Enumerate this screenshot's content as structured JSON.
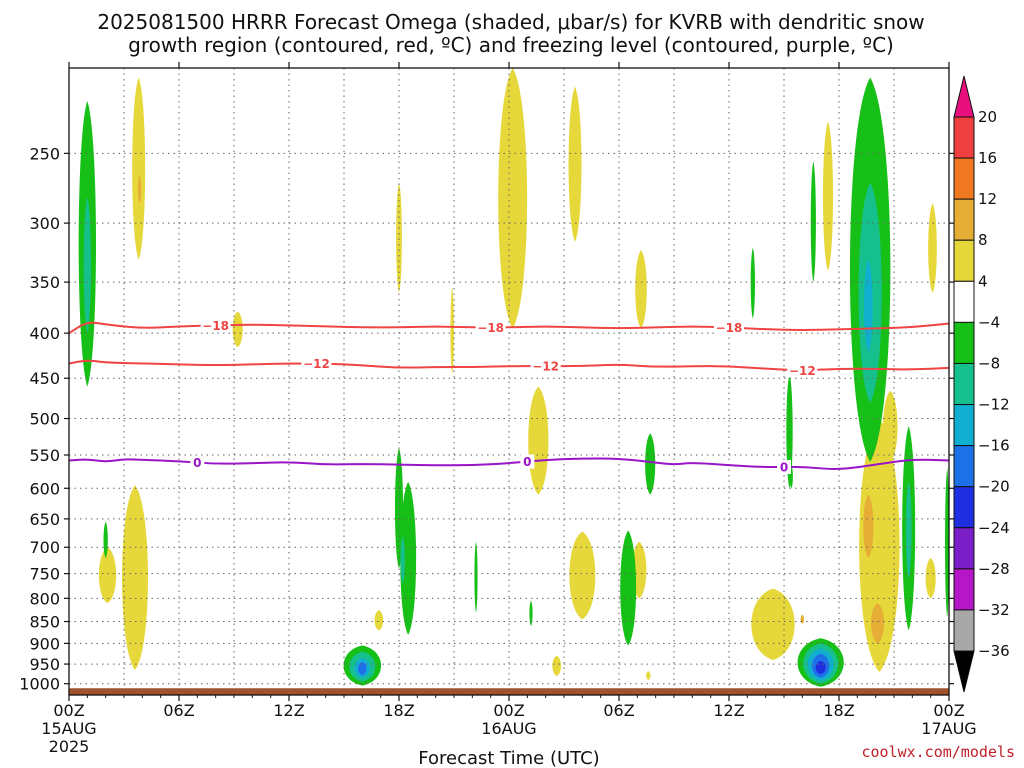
{
  "chart_data": {
    "type": "heatmap",
    "title_lines": [
      "2025081500 HRRR Forecast Omega (shaded, μbar/s) for KVRB with dendritic snow",
      "growth region (contoured, red, ºC) and freezing level (contoured, purple, ºC)"
    ],
    "xlabel": "Forecast Time (UTC)",
    "credit": "coolwx.com/models",
    "x_ticks": [
      {
        "h": 0,
        "lines": [
          "00Z",
          "15AUG",
          "2025"
        ]
      },
      {
        "h": 6,
        "lines": [
          "06Z"
        ]
      },
      {
        "h": 12,
        "lines": [
          "12Z"
        ]
      },
      {
        "h": 18,
        "lines": [
          "18Z"
        ]
      },
      {
        "h": 24,
        "lines": [
          "00Z",
          "16AUG"
        ]
      },
      {
        "h": 30,
        "lines": [
          "06Z"
        ]
      },
      {
        "h": 36,
        "lines": [
          "12Z"
        ]
      },
      {
        "h": 42,
        "lines": [
          "18Z"
        ]
      },
      {
        "h": 48,
        "lines": [
          "00Z",
          "17AUG"
        ]
      }
    ],
    "xlim_hours": [
      0,
      48
    ],
    "y_ticks": [
      250,
      300,
      350,
      400,
      450,
      500,
      550,
      600,
      650,
      700,
      750,
      800,
      850,
      900,
      950,
      1000
    ],
    "ylim_hpa": [
      200,
      1030
    ],
    "y_scale": "log",
    "ground_hpa": 1012,
    "grid": true,
    "colorbar": {
      "labels": [
        "20",
        "16",
        "12",
        "8",
        "4",
        "−4",
        "−8",
        "−12",
        "−16",
        "−20",
        "−24",
        "−28",
        "−32",
        "−36"
      ],
      "colors": [
        "#e8107c",
        "#ee4040",
        "#f07820",
        "#e6ae36",
        "#e6d83a",
        "#ffffff",
        "#16c016",
        "#16c08c",
        "#12aed0",
        "#1e70e8",
        "#1e2ee0",
        "#7a1ec8",
        "#b416c8",
        "#a8a8a8",
        "#000000"
      ]
    },
    "contours": [
      {
        "name": "-18",
        "color": "#ee4444",
        "label": "−18",
        "label_hours": [
          8,
          23,
          36
        ],
        "points": [
          [
            0,
            400
          ],
          [
            1,
            388
          ],
          [
            2,
            391
          ],
          [
            4,
            395
          ],
          [
            6,
            393
          ],
          [
            8,
            392
          ],
          [
            10,
            391
          ],
          [
            12,
            392
          ],
          [
            14,
            393
          ],
          [
            16,
            394
          ],
          [
            18,
            394
          ],
          [
            20,
            393
          ],
          [
            22,
            394
          ],
          [
            24,
            394
          ],
          [
            26,
            393
          ],
          [
            28,
            394
          ],
          [
            30,
            395
          ],
          [
            32,
            394
          ],
          [
            34,
            393
          ],
          [
            36,
            394
          ],
          [
            38,
            396
          ],
          [
            40,
            397
          ],
          [
            42,
            396
          ],
          [
            44,
            395
          ],
          [
            46,
            394
          ],
          [
            48,
            390
          ]
        ]
      },
      {
        "name": "-12",
        "color": "#ee4444",
        "label": "−12",
        "label_hours": [
          13.5,
          26,
          40
        ],
        "points": [
          [
            0,
            433
          ],
          [
            1,
            429
          ],
          [
            2,
            432
          ],
          [
            4,
            433
          ],
          [
            6,
            434
          ],
          [
            8,
            435
          ],
          [
            10,
            434
          ],
          [
            12,
            433
          ],
          [
            14,
            433
          ],
          [
            16,
            435
          ],
          [
            18,
            438
          ],
          [
            20,
            437
          ],
          [
            22,
            437
          ],
          [
            24,
            436
          ],
          [
            26,
            436
          ],
          [
            28,
            436
          ],
          [
            30,
            434
          ],
          [
            32,
            437
          ],
          [
            34,
            436
          ],
          [
            36,
            436
          ],
          [
            38,
            439
          ],
          [
            40,
            441
          ],
          [
            42,
            439
          ],
          [
            44,
            439
          ],
          [
            46,
            440
          ],
          [
            48,
            438
          ]
        ]
      },
      {
        "name": "0",
        "color": "#9a14c8",
        "label": "0",
        "label_hours": [
          7,
          25,
          39
        ],
        "points": [
          [
            0,
            558
          ],
          [
            1,
            556
          ],
          [
            2,
            560
          ],
          [
            3,
            556
          ],
          [
            4,
            557
          ],
          [
            6,
            559
          ],
          [
            8,
            563
          ],
          [
            10,
            562
          ],
          [
            12,
            560
          ],
          [
            14,
            564
          ],
          [
            16,
            563
          ],
          [
            18,
            564
          ],
          [
            20,
            565
          ],
          [
            22,
            565
          ],
          [
            24,
            562
          ],
          [
            26,
            557
          ],
          [
            28,
            555
          ],
          [
            30,
            555
          ],
          [
            32,
            561
          ],
          [
            33,
            564
          ],
          [
            34,
            561
          ],
          [
            36,
            565
          ],
          [
            38,
            568
          ],
          [
            40,
            567
          ],
          [
            42,
            572
          ],
          [
            44,
            564
          ],
          [
            46,
            556
          ],
          [
            48,
            558
          ]
        ]
      }
    ],
    "omega_regions": [
      {
        "level": "4",
        "color": "#e6d83a",
        "h": 3.8,
        "dh": 0.45,
        "p1": 205,
        "p2": 330
      },
      {
        "level": "4",
        "color": "#e6d83a",
        "h": 2.1,
        "dh": 0.6,
        "p1": 700,
        "p2": 810
      },
      {
        "level": "4",
        "color": "#e6d83a",
        "h": 3.6,
        "dh": 0.9,
        "p1": 595,
        "p2": 965
      },
      {
        "level": "4",
        "color": "#e6d83a",
        "h": 9.2,
        "dh": 0.35,
        "p1": 378,
        "p2": 415
      },
      {
        "level": "4",
        "color": "#e6d83a",
        "h": 18.0,
        "dh": 0.2,
        "p1": 270,
        "p2": 360
      },
      {
        "level": "4",
        "color": "#e6d83a",
        "h": 16.9,
        "dh": 0.3,
        "p1": 825,
        "p2": 870
      },
      {
        "level": "4",
        "color": "#e6d83a",
        "h": 20.9,
        "dh": 0.12,
        "p1": 355,
        "p2": 445
      },
      {
        "level": "4",
        "color": "#e6d83a",
        "h": 24.2,
        "dh": 1.0,
        "p1": 200,
        "p2": 395
      },
      {
        "level": "4",
        "color": "#e6d83a",
        "h": 27.6,
        "dh": 0.45,
        "p1": 210,
        "p2": 315
      },
      {
        "level": "4",
        "color": "#e6d83a",
        "h": 25.6,
        "dh": 0.7,
        "p1": 460,
        "p2": 610
      },
      {
        "level": "4",
        "color": "#e6d83a",
        "h": 28.0,
        "dh": 0.9,
        "p1": 672,
        "p2": 845
      },
      {
        "level": "4",
        "color": "#e6d83a",
        "h": 31.1,
        "dh": 0.5,
        "p1": 690,
        "p2": 800
      },
      {
        "level": "4",
        "color": "#e6d83a",
        "h": 26.6,
        "dh": 0.3,
        "p1": 930,
        "p2": 980
      },
      {
        "level": "4",
        "color": "#e6d83a",
        "h": 31.6,
        "dh": 0.15,
        "p1": 968,
        "p2": 990
      },
      {
        "level": "4",
        "color": "#e6d83a",
        "h": 31.2,
        "dh": 0.4,
        "p1": 322,
        "p2": 395
      },
      {
        "level": "4",
        "color": "#e6d83a",
        "h": 41.4,
        "dh": 0.35,
        "p1": 230,
        "p2": 340
      },
      {
        "level": "4",
        "color": "#e6d83a",
        "h": 38.4,
        "dh": 1.5,
        "p1": 780,
        "p2": 940
      },
      {
        "level": "4",
        "color": "#e6d83a",
        "h": 44.2,
        "dh": 1.4,
        "p1": 500,
        "p2": 970
      },
      {
        "level": "4",
        "color": "#e6d83a",
        "h": 44.8,
        "dh": 0.5,
        "p1": 465,
        "p2": 560
      },
      {
        "level": "4",
        "color": "#e6d83a",
        "h": 47.1,
        "dh": 0.3,
        "p1": 285,
        "p2": 360
      },
      {
        "level": "4",
        "color": "#e6d83a",
        "h": 47.0,
        "dh": 0.35,
        "p1": 720,
        "p2": 800
      },
      {
        "level": "8",
        "color": "#e6ae36",
        "h": 43.6,
        "dh": 0.35,
        "p1": 610,
        "p2": 720
      },
      {
        "level": "8",
        "color": "#e6ae36",
        "h": 44.1,
        "dh": 0.45,
        "p1": 810,
        "p2": 900
      },
      {
        "level": "8",
        "color": "#e6ae36",
        "h": 40.0,
        "dh": 0.12,
        "p1": 835,
        "p2": 855
      },
      {
        "level": "8",
        "color": "#e6ae36",
        "h": 3.85,
        "dh": 0.12,
        "p1": 265,
        "p2": 285
      },
      {
        "level": "-4",
        "color": "#16c016",
        "h": 1.0,
        "dh": 0.6,
        "p1": 218,
        "p2": 460
      },
      {
        "level": "-4",
        "color": "#16c016",
        "h": 2.0,
        "dh": 0.15,
        "p1": 655,
        "p2": 720
      },
      {
        "level": "-4",
        "color": "#16c016",
        "h": 18.0,
        "dh": 0.28,
        "p1": 540,
        "p2": 740
      },
      {
        "level": "-4",
        "color": "#16c016",
        "h": 18.5,
        "dh": 0.55,
        "p1": 590,
        "p2": 880
      },
      {
        "level": "-4",
        "color": "#16c016",
        "h": 22.2,
        "dh": 0.1,
        "p1": 690,
        "p2": 830
      },
      {
        "level": "-4",
        "color": "#16c016",
        "h": 25.2,
        "dh": 0.1,
        "p1": 805,
        "p2": 860
      },
      {
        "level": "-4",
        "color": "#16c016",
        "h": 30.5,
        "dh": 0.55,
        "p1": 670,
        "p2": 905
      },
      {
        "level": "-4",
        "color": "#16c016",
        "h": 31.7,
        "dh": 0.35,
        "p1": 520,
        "p2": 610
      },
      {
        "level": "-4",
        "color": "#16c016",
        "h": 37.3,
        "dh": 0.15,
        "p1": 320,
        "p2": 385
      },
      {
        "level": "-4",
        "color": "#16c016",
        "h": 39.3,
        "dh": 0.22,
        "p1": 445,
        "p2": 600
      },
      {
        "level": "-4",
        "color": "#16c016",
        "h": 39.4,
        "dh": 0.1,
        "p1": 565,
        "p2": 600
      },
      {
        "level": "-4",
        "color": "#16c016",
        "h": 40.6,
        "dh": 0.18,
        "p1": 255,
        "p2": 350
      },
      {
        "level": "-4",
        "color": "#16c016",
        "h": 43.7,
        "dh": 1.4,
        "p1": 205,
        "p2": 560
      },
      {
        "level": "-4",
        "color": "#16c016",
        "h": 45.8,
        "dh": 0.45,
        "p1": 510,
        "p2": 870
      },
      {
        "level": "-4",
        "color": "#16c016",
        "h": 47.9,
        "dh": 0.15,
        "p1": 570,
        "p2": 840
      },
      {
        "level": "-4",
        "color": "#16c016",
        "h": 16.0,
        "dh": 1.3,
        "p1": 905,
        "p2": 1005
      },
      {
        "level": "-4",
        "color": "#16c016",
        "h": 41.0,
        "dh": 1.6,
        "p1": 888,
        "p2": 1008
      },
      {
        "level": "-8",
        "color": "#16c08c",
        "h": 1.0,
        "dh": 0.25,
        "p1": 280,
        "p2": 400
      },
      {
        "level": "-8",
        "color": "#16c08c",
        "h": 43.7,
        "dh": 0.8,
        "p1": 270,
        "p2": 480
      },
      {
        "level": "-8",
        "color": "#16c08c",
        "h": 45.8,
        "dh": 0.2,
        "p1": 590,
        "p2": 760
      },
      {
        "level": "-8",
        "color": "#16c08c",
        "h": 18.2,
        "dh": 0.15,
        "p1": 680,
        "p2": 770
      },
      {
        "level": "-8",
        "color": "#16c08c",
        "h": 16.0,
        "dh": 0.9,
        "p1": 920,
        "p2": 995
      },
      {
        "level": "-8",
        "color": "#16c08c",
        "h": 41.0,
        "dh": 1.2,
        "p1": 900,
        "p2": 1000
      },
      {
        "level": "-12",
        "color": "#12aed0",
        "h": 16.0,
        "dh": 0.55,
        "p1": 935,
        "p2": 985
      },
      {
        "level": "-12",
        "color": "#12aed0",
        "h": 41.0,
        "dh": 0.9,
        "p1": 912,
        "p2": 992
      },
      {
        "level": "-12",
        "color": "#12aed0",
        "h": 43.6,
        "dh": 0.3,
        "p1": 330,
        "p2": 420
      },
      {
        "level": "-16",
        "color": "#1e70e8",
        "h": 16.0,
        "dh": 0.3,
        "p1": 945,
        "p2": 978
      },
      {
        "level": "-16",
        "color": "#1e70e8",
        "h": 41.0,
        "dh": 0.6,
        "p1": 925,
        "p2": 985
      },
      {
        "level": "-20",
        "color": "#1e2ee0",
        "h": 41.0,
        "dh": 0.35,
        "p1": 942,
        "p2": 975
      }
    ]
  }
}
